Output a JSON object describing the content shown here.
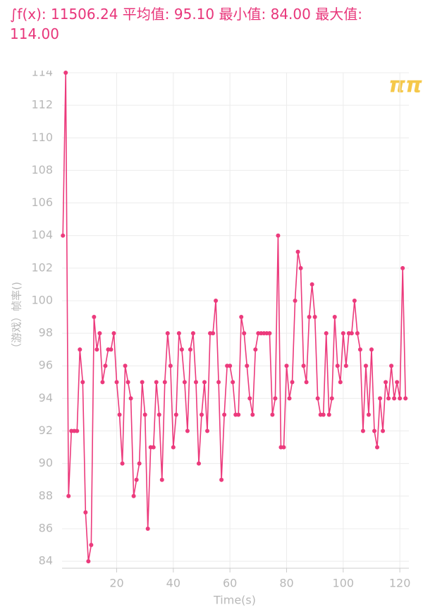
{
  "chart_data": {
    "type": "line",
    "title": "∫f(x): 11506.24 平均值: 95.10 最小值: 84.00 最大值: 114.00",
    "x_label": "Time(s)",
    "y_label": "（游戏）帧率()",
    "x": [
      1,
      2,
      3,
      4,
      5,
      6,
      7,
      8,
      9,
      10,
      11,
      12,
      13,
      14,
      15,
      16,
      17,
      18,
      19,
      20,
      21,
      22,
      23,
      24,
      25,
      26,
      27,
      28,
      29,
      30,
      31,
      32,
      33,
      34,
      35,
      36,
      37,
      38,
      39,
      40,
      41,
      42,
      43,
      44,
      45,
      46,
      47,
      48,
      49,
      50,
      51,
      52,
      53,
      54,
      55,
      56,
      57,
      58,
      59,
      60,
      61,
      62,
      63,
      64,
      65,
      66,
      67,
      68,
      69,
      70,
      71,
      72,
      73,
      74,
      75,
      76,
      77,
      78,
      79,
      80,
      81,
      82,
      83,
      84,
      85,
      86,
      87,
      88,
      89,
      90,
      91,
      92,
      93,
      94,
      95,
      96,
      97,
      98,
      99,
      100,
      101,
      102,
      103,
      104,
      105,
      106,
      107,
      108,
      109,
      110,
      111,
      112,
      113,
      114,
      115,
      116,
      117,
      118,
      119,
      120,
      121,
      122
    ],
    "series": [
      {
        "name": "帧率",
        "color": "#ec3a7c",
        "values": [
          104,
          114,
          88,
          92,
          92,
          92,
          97,
          95,
          87,
          84,
          85,
          99,
          97,
          98,
          95,
          96,
          97,
          97,
          98,
          95,
          93,
          90,
          96,
          95,
          94,
          88,
          89,
          90,
          95,
          93,
          86,
          91,
          91,
          95,
          93,
          89,
          95,
          98,
          96,
          91,
          93,
          98,
          97,
          95,
          92,
          97,
          98,
          95,
          90,
          93,
          95,
          92,
          98,
          98,
          100,
          95,
          89,
          93,
          96,
          96,
          95,
          93,
          93,
          99,
          98,
          96,
          94,
          93,
          97,
          98,
          98,
          98,
          98,
          98,
          93,
          94,
          104,
          91,
          91,
          96,
          94,
          95,
          100,
          103,
          102,
          96,
          95,
          99,
          101,
          99,
          94,
          93,
          93,
          98,
          93,
          94,
          99,
          96,
          95,
          98,
          96,
          98,
          98,
          100,
          98,
          97,
          92,
          96,
          93,
          97,
          92,
          91,
          94,
          92,
          95,
          94,
          96,
          94,
          95,
          94,
          102,
          94
        ]
      }
    ],
    "xlim": [
      0.7,
      123.2
    ],
    "xticks": [
      20,
      40,
      60,
      80,
      100,
      120
    ],
    "ylim": [
      83.57,
      114
    ],
    "yticks": [
      84,
      86,
      88,
      90,
      92,
      94,
      96,
      98,
      100,
      102,
      104,
      106,
      108,
      110,
      112,
      114
    ],
    "grid": true
  }
}
